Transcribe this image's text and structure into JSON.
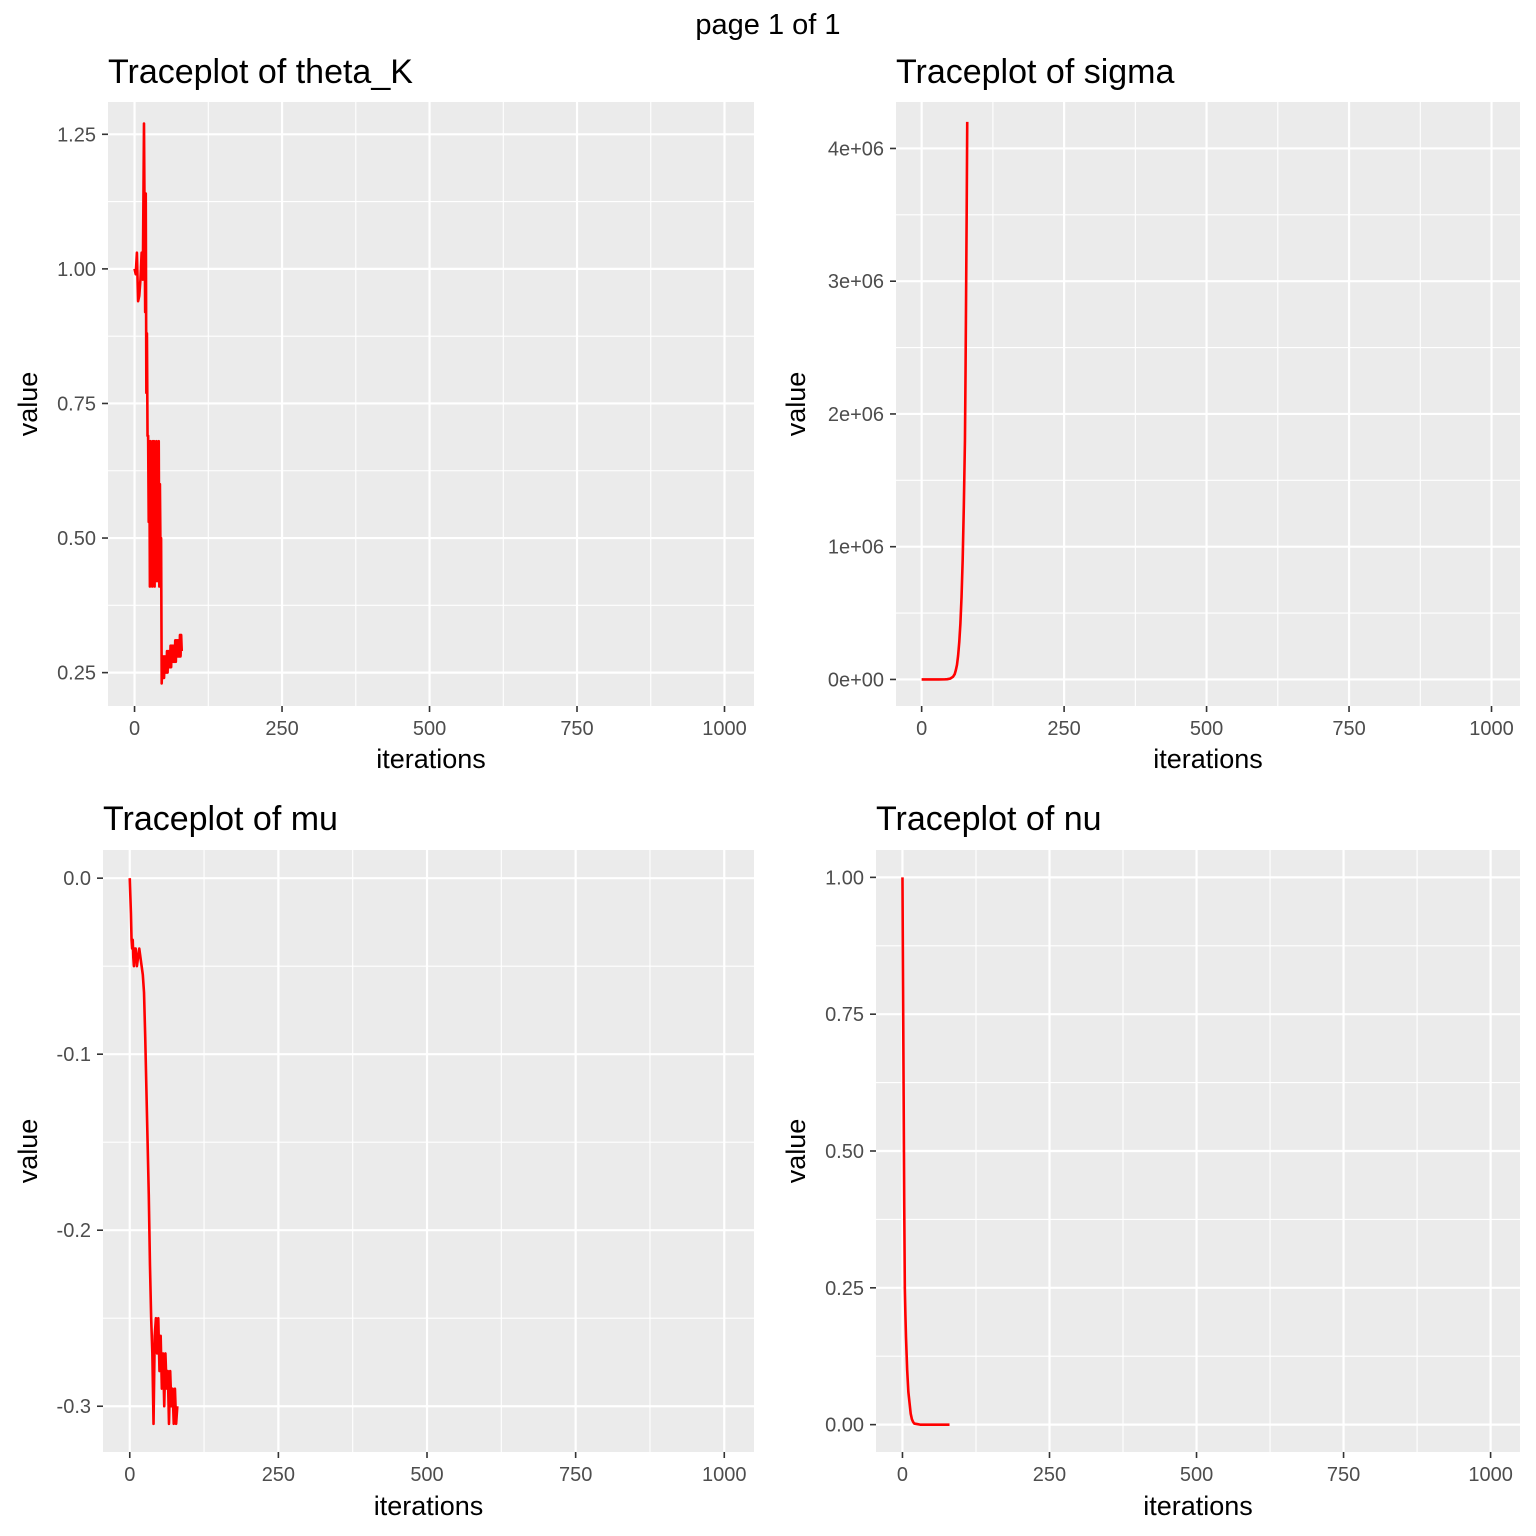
{
  "page_title": "page 1 of 1",
  "colors": {
    "panel_bg": "#ebebeb",
    "grid": "#ffffff",
    "line": "#ff0000",
    "tick": "#333333"
  },
  "chart_data": [
    {
      "type": "line",
      "title": "Traceplot of theta_K",
      "xlabel": "iterations",
      "ylabel": "value",
      "xlim": [
        -45,
        1050
      ],
      "ylim": [
        0.188,
        1.31
      ],
      "x_ticks": [
        0,
        250,
        500,
        750,
        1000
      ],
      "x_tick_labels": [
        "0",
        "250",
        "500",
        "750",
        "1000"
      ],
      "y_ticks": [
        0.25,
        0.5,
        0.75,
        1.0,
        1.25
      ],
      "y_tick_labels": [
        "0.25",
        "0.50",
        "0.75",
        "1.00",
        "1.25"
      ],
      "grid": true,
      "series": [
        {
          "x": [
            0,
            2,
            4,
            6,
            8,
            10,
            12,
            14,
            16,
            18,
            19,
            20,
            21,
            22,
            23,
            24,
            25,
            26,
            27,
            28,
            29,
            30,
            31,
            32,
            33,
            34,
            35,
            36,
            37,
            38,
            39,
            40,
            41,
            42,
            43,
            44,
            45,
            46,
            47,
            48,
            49,
            50,
            51,
            52,
            53,
            54,
            55,
            56,
            57,
            58,
            59,
            60,
            61,
            62,
            63,
            64,
            65,
            66,
            67,
            68,
            69,
            70,
            71,
            72,
            73,
            74,
            75,
            76,
            77,
            78,
            79,
            80
          ],
          "values": [
            1.0,
            0.99,
            1.03,
            0.94,
            0.95,
            0.98,
            1.03,
            0.98,
            1.27,
            0.92,
            1.14,
            0.77,
            0.88,
            0.69,
            0.69,
            0.53,
            0.68,
            0.41,
            0.68,
            0.42,
            0.67,
            0.41,
            0.68,
            0.43,
            0.68,
            0.41,
            0.64,
            0.45,
            0.68,
            0.42,
            0.64,
            0.48,
            0.68,
            0.41,
            0.6,
            0.47,
            0.5,
            0.23,
            0.27,
            0.24,
            0.28,
            0.24,
            0.28,
            0.25,
            0.28,
            0.25,
            0.29,
            0.25,
            0.29,
            0.26,
            0.29,
            0.26,
            0.3,
            0.26,
            0.3,
            0.27,
            0.3,
            0.27,
            0.3,
            0.27,
            0.31,
            0.27,
            0.31,
            0.28,
            0.31,
            0.28,
            0.31,
            0.28,
            0.32,
            0.28,
            0.32,
            0.29
          ]
        }
      ]
    },
    {
      "type": "line",
      "title": "Traceplot of sigma",
      "xlabel": "iterations",
      "ylabel": "value",
      "xlim": [
        -45,
        1050
      ],
      "ylim": [
        -200000,
        4350000
      ],
      "x_ticks": [
        0,
        250,
        500,
        750,
        1000
      ],
      "x_tick_labels": [
        "0",
        "250",
        "500",
        "750",
        "1000"
      ],
      "y_ticks": [
        0,
        1000000,
        2000000,
        3000000,
        4000000
      ],
      "y_tick_labels": [
        "0e+00",
        "1e+06",
        "2e+06",
        "3e+06",
        "4e+06"
      ],
      "grid": true,
      "series": [
        {
          "x": [
            0,
            10,
            20,
            30,
            40,
            45,
            50,
            55,
            58,
            60,
            62,
            64,
            66,
            68,
            70,
            72,
            74,
            76,
            77,
            78,
            79,
            80
          ],
          "values": [
            0,
            0,
            0,
            0,
            500,
            2000,
            6000,
            20000,
            40000,
            70000,
            110000,
            180000,
            280000,
            420000,
            620000,
            900000,
            1300000,
            1800000,
            2300000,
            2900000,
            3500000,
            4200000
          ]
        }
      ]
    },
    {
      "type": "line",
      "title": "Traceplot of mu",
      "xlabel": "iterations",
      "ylabel": "value",
      "xlim": [
        -45,
        1050
      ],
      "ylim": [
        -0.326,
        0.016
      ],
      "x_ticks": [
        0,
        250,
        500,
        750,
        1000
      ],
      "x_tick_labels": [
        "0",
        "250",
        "500",
        "750",
        "1000"
      ],
      "y_ticks": [
        -0.3,
        -0.2,
        -0.1,
        0.0
      ],
      "y_tick_labels": [
        "-0.3",
        "-0.2",
        "-0.1",
        "0.0"
      ],
      "grid": true,
      "series": [
        {
          "x": [
            0,
            2,
            3,
            4,
            5,
            6,
            7,
            8,
            10,
            12,
            14,
            16,
            18,
            20,
            22,
            24,
            26,
            28,
            30,
            32,
            34,
            36,
            38,
            40,
            42,
            44,
            46,
            48,
            50,
            52,
            54,
            56,
            58,
            60,
            62,
            64,
            66,
            68,
            70,
            72,
            74,
            76,
            78,
            80
          ],
          "values": [
            0.0,
            -0.02,
            -0.035,
            -0.04,
            -0.035,
            -0.045,
            -0.05,
            -0.04,
            -0.04,
            -0.05,
            -0.045,
            -0.04,
            -0.045,
            -0.05,
            -0.055,
            -0.065,
            -0.09,
            -0.12,
            -0.15,
            -0.18,
            -0.22,
            -0.25,
            -0.27,
            -0.31,
            -0.26,
            -0.25,
            -0.27,
            -0.25,
            -0.28,
            -0.26,
            -0.29,
            -0.27,
            -0.3,
            -0.27,
            -0.29,
            -0.28,
            -0.31,
            -0.28,
            -0.3,
            -0.29,
            -0.31,
            -0.29,
            -0.31,
            -0.3
          ]
        }
      ]
    },
    {
      "type": "line",
      "title": "Traceplot of nu",
      "xlabel": "iterations",
      "ylabel": "value",
      "xlim": [
        -45,
        1050
      ],
      "ylim": [
        -0.05,
        1.05
      ],
      "x_ticks": [
        0,
        250,
        500,
        750,
        1000
      ],
      "x_tick_labels": [
        "0",
        "250",
        "500",
        "750",
        "1000"
      ],
      "y_ticks": [
        0.0,
        0.25,
        0.5,
        0.75,
        1.0
      ],
      "y_tick_labels": [
        "0.00",
        "0.25",
        "0.50",
        "0.75",
        "1.00"
      ],
      "grid": true,
      "series": [
        {
          "x": [
            0,
            1,
            2,
            3,
            4,
            5,
            6,
            7,
            8,
            10,
            12,
            14,
            16,
            18,
            20,
            25,
            30,
            40,
            50,
            60,
            70,
            80
          ],
          "values": [
            1.0,
            0.8,
            0.6,
            0.4,
            0.25,
            0.2,
            0.16,
            0.13,
            0.1,
            0.06,
            0.04,
            0.02,
            0.01,
            0.005,
            0.002,
            0.001,
            0.0,
            0.0,
            0.0,
            0.0,
            0.0,
            0.0
          ]
        }
      ]
    }
  ]
}
